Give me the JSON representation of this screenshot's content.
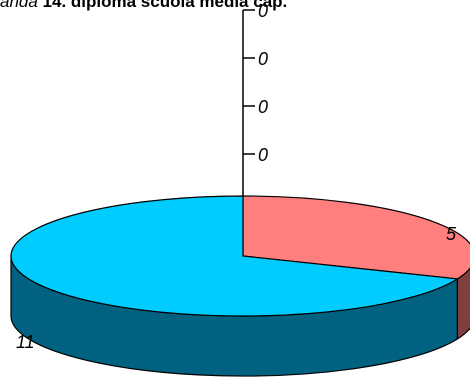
{
  "chart_data": {
    "type": "pie",
    "title": {
      "prefix": "anda",
      "main": " 14. diploma scuola media cap."
    },
    "slices": [
      {
        "value": 5,
        "label": "5",
        "color": "#ff7f7f",
        "side_color": "#7f3f3f"
      },
      {
        "value": 11,
        "label": "11",
        "color": "#00ccff",
        "side_color": "#006280"
      }
    ],
    "axis": {
      "tick_labels": [
        "0",
        "0",
        "0",
        "0",
        "0"
      ]
    },
    "legend": "none",
    "style": "3d"
  }
}
